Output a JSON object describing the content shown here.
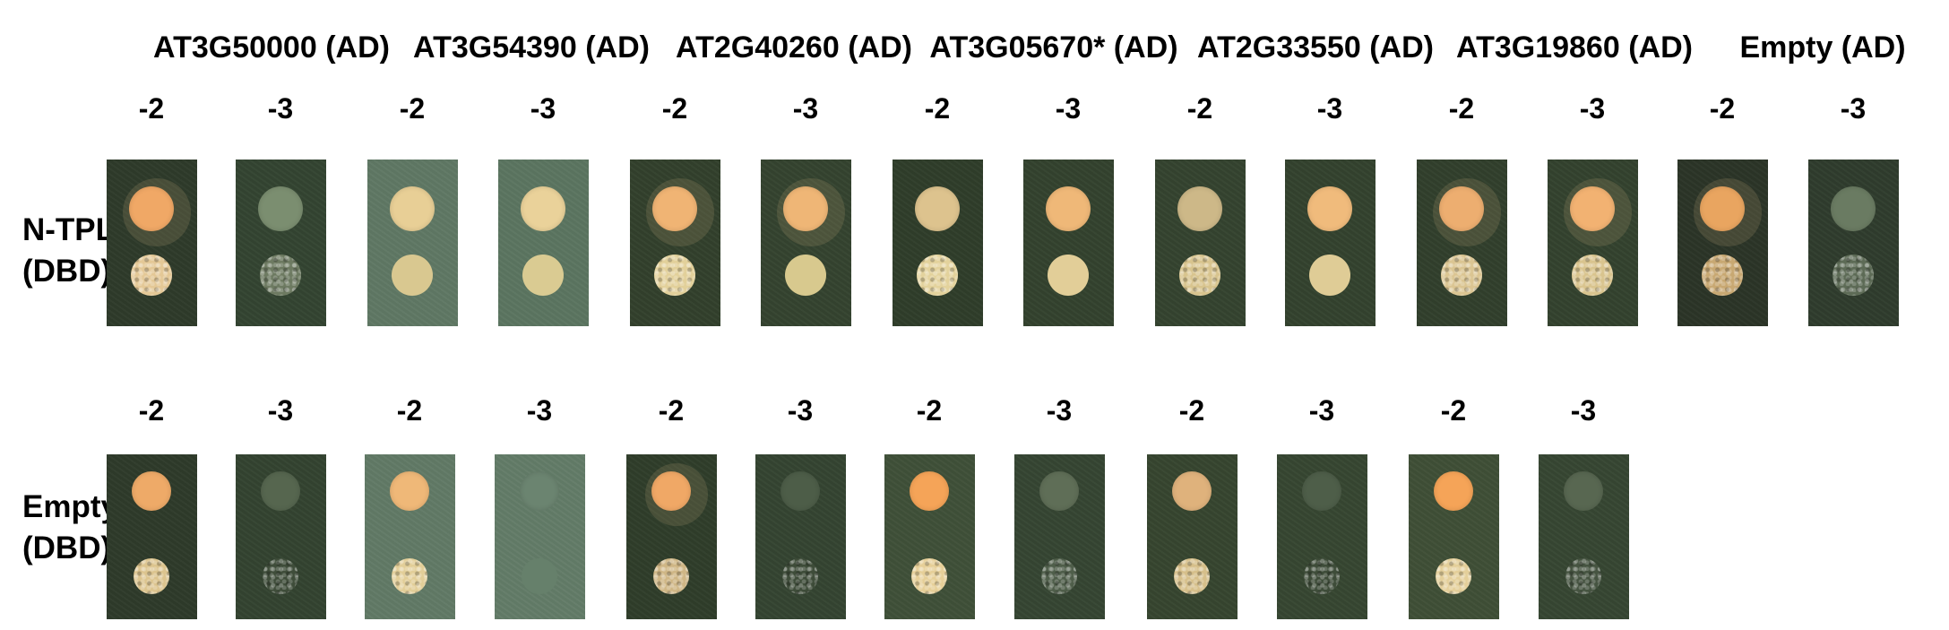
{
  "column_headers": [
    "AT3G50000 (AD)",
    "AT3G54390 (AD)",
    "AT2G40260 (AD)",
    "AT3G05670* (AD)",
    "AT2G33550 (AD)",
    "AT3G19860 (AD)",
    "Empty (AD)"
  ],
  "dilution_labels": [
    "-2",
    "-3"
  ],
  "rows": [
    {
      "label_line1": "N-TPL",
      "label_line2": "(DBD)",
      "groups": 7,
      "plates": [
        {
          "plate": "#2e3a2a",
          "top": "#f0a866",
          "top_halo": true,
          "bottom": "#e4c896",
          "bottom_texture": "rough"
        },
        {
          "plate": "#334431",
          "top": "#7b8e70",
          "bottom": "#6d7a61",
          "bottom_texture": "rough"
        },
        {
          "plate": "#5f7864",
          "top": "#e8cf96",
          "bottom": "#d9c890",
          "bottom_texture": "smooth"
        },
        {
          "plate": "#5b7560",
          "top": "#ead29a",
          "bottom": "#dacb92",
          "bottom_texture": "smooth"
        },
        {
          "plate": "#32402c",
          "top": "#f0b474",
          "top_halo": true,
          "bottom": "#e2d09a",
          "bottom_texture": "rough"
        },
        {
          "plate": "#34432f",
          "top": "#efb676",
          "top_halo": true,
          "bottom": "#d8c98e",
          "bottom_texture": "smooth"
        },
        {
          "plate": "#2f3d2a",
          "top": "#ddc38e",
          "bottom": "#e3d29c",
          "bottom_texture": "rough"
        },
        {
          "plate": "#33422e",
          "top": "#efb878",
          "bottom": "#e2ce98",
          "bottom_texture": "smooth"
        },
        {
          "plate": "#34432f",
          "top": "#cdb888",
          "bottom": "#d8c48e",
          "bottom_texture": "rough"
        },
        {
          "plate": "#33422e",
          "top": "#f0bb7c",
          "bottom": "#dfcc96",
          "bottom_texture": "smooth"
        },
        {
          "plate": "#313f2c",
          "top": "#edae70",
          "top_halo": true,
          "bottom": "#dbc592",
          "bottom_texture": "rough"
        },
        {
          "plate": "#33422e",
          "top": "#f2b272",
          "top_halo": true,
          "bottom": "#d9c48e",
          "bottom_texture": "rough"
        },
        {
          "plate": "#2b3427",
          "top": "#e9a560",
          "top_halo": true,
          "bottom": "#c8a872",
          "bottom_texture": "rough"
        },
        {
          "plate": "#2f3c2d",
          "top": "#6a7b62",
          "bottom": "#5d6b56",
          "bottom_texture": "rough"
        }
      ]
    },
    {
      "label_line1": "Empty",
      "label_line2": "(DBD)",
      "groups": 6,
      "plates": [
        {
          "plate": "#2e3a2a",
          "top": "#eeaa68",
          "bottom": "#dcc48e",
          "bottom_texture": "rough"
        },
        {
          "plate": "#334330",
          "top": "#56664f",
          "bottom": "#3f4d3a",
          "bottom_texture": "rough"
        },
        {
          "plate": "#617a66",
          "top": "#efb878",
          "bottom": "#e2ce98",
          "bottom_texture": "rough"
        },
        {
          "plate": "#637c68",
          "top": "#6b8470",
          "bottom": "#66806b",
          "bottom_texture": "smooth"
        },
        {
          "plate": "#2f3d2a",
          "top": "#f0a866",
          "top_halo": true,
          "bottom": "#cfb685",
          "bottom_texture": "rough"
        },
        {
          "plate": "#344431",
          "top": "#4d5d48",
          "bottom": "#3e4c39",
          "bottom_texture": "rough"
        },
        {
          "plate": "#3f5038",
          "top": "#f5a458",
          "bottom": "#e6cf98",
          "bottom_texture": "rough"
        },
        {
          "plate": "#354532",
          "top": "#5f6e57",
          "bottom": "#4f5e4a",
          "bottom_texture": "rough"
        },
        {
          "plate": "#36452f",
          "top": "#dfb27c",
          "bottom": "#d6bf8a",
          "bottom_texture": "rough"
        },
        {
          "plate": "#364631",
          "top": "#4e5e49",
          "bottom": "#3e4c39",
          "bottom_texture": "rough"
        },
        {
          "plate": "#3f4f36",
          "top": "#f5a458",
          "bottom": "#e4cf9a",
          "bottom_texture": "rough"
        },
        {
          "plate": "#364632",
          "top": "#586751",
          "bottom": "#465441",
          "bottom_texture": "rough"
        }
      ]
    }
  ]
}
